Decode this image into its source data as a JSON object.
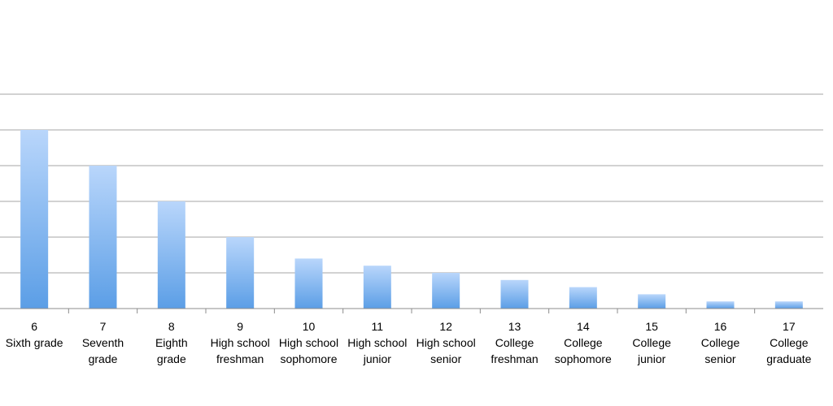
{
  "chart_data": {
    "type": "bar",
    "title": "",
    "xlabel": "",
    "ylabel": "",
    "ylim": [
      0,
      6
    ],
    "grid": true,
    "legend": "none",
    "categories": [
      [
        "6",
        "Sixth grade"
      ],
      [
        "7",
        "Seventh",
        "grade"
      ],
      [
        "8",
        "Eighth",
        "grade"
      ],
      [
        "9",
        "High school",
        "freshman"
      ],
      [
        "10",
        "High school",
        "sophomore"
      ],
      [
        "11",
        "High school",
        "junior"
      ],
      [
        "12",
        "High school",
        "senior"
      ],
      [
        "13",
        "College",
        "freshman"
      ],
      [
        "14",
        "College",
        "sophomore"
      ],
      [
        "15",
        "College",
        "junior"
      ],
      [
        "16",
        "College",
        "senior"
      ],
      [
        "17",
        "College",
        "graduate"
      ]
    ],
    "values": [
      5,
      4,
      3,
      2,
      1.4,
      1.2,
      1.0,
      0.8,
      0.6,
      0.4,
      0.2,
      0.2
    ],
    "colors": {
      "bar_top": "#b9d6fb",
      "bar_bottom": "#5b9ee6",
      "grid": "#a6a6a6",
      "axis": "#8c8c8c"
    }
  }
}
